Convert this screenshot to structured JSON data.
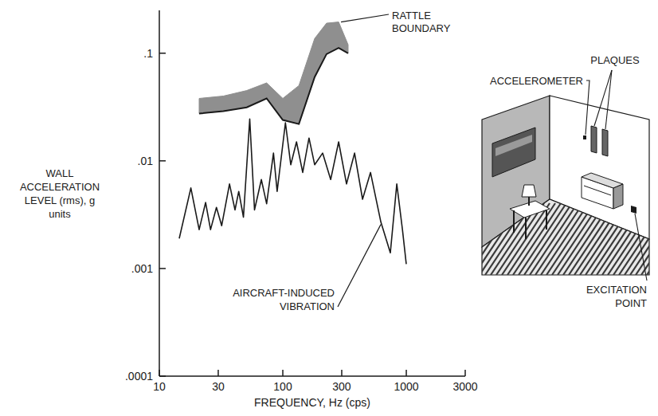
{
  "chart_data": {
    "type": "line",
    "xlabel": "FREQUENCY, Hz (cps)",
    "ylabel": "WALL ACCELERATION LEVEL (rms), g units",
    "log": true,
    "grid": false,
    "xlim": [
      10,
      3000
    ],
    "xticks": [
      10,
      30,
      100,
      300,
      1000,
      3000
    ],
    "ylim": [
      0.0001,
      0.25
    ],
    "yticks": [
      {
        "value": 0.0001,
        "label": ".0001"
      },
      {
        "value": 0.001,
        "label": ".001"
      },
      {
        "value": 0.01,
        "label": ".01"
      },
      {
        "value": 0.1,
        "label": ".1"
      }
    ],
    "series": [
      {
        "name": "RATTLE BOUNDARY",
        "type": "area",
        "color": "#8f8f8f",
        "x": [
          21,
          33,
          51,
          74,
          100,
          135,
          181,
          226,
          283,
          338
        ],
        "values": [
          0.0275,
          0.029,
          0.0314,
          0.038,
          0.024,
          0.022,
          0.06,
          0.098,
          0.112,
          0.1
        ],
        "upper": [
          0.038,
          0.04,
          0.045,
          0.053,
          0.038,
          0.05,
          0.137,
          0.19,
          0.195,
          0.12
        ]
      },
      {
        "name": "AIRCRAFT-INDUCED VIBRATION",
        "type": "line",
        "color": "#1a1a1a",
        "x": [
          14.5,
          18,
          21,
          23.7,
          26,
          29,
          32,
          37,
          41,
          44,
          48,
          54,
          59,
          67,
          74,
          84,
          90,
          105,
          116,
          129,
          145,
          163,
          181,
          210,
          244,
          283,
          328,
          381,
          442,
          513,
          622,
          743,
          837,
          930,
          1000
        ],
        "values": [
          0.0019,
          0.0056,
          0.0023,
          0.0041,
          0.0023,
          0.0037,
          0.0025,
          0.0061,
          0.0035,
          0.0052,
          0.003,
          0.0245,
          0.0035,
          0.0067,
          0.004,
          0.0118,
          0.0052,
          0.0226,
          0.0092,
          0.015,
          0.0078,
          0.0163,
          0.0092,
          0.0118,
          0.0067,
          0.015,
          0.0061,
          0.0118,
          0.0044,
          0.0078,
          0.0027,
          0.0014,
          0.0061,
          0.0023,
          0.0011
        ]
      }
    ]
  },
  "inset": {
    "labels": [
      "PLAQUES",
      "ACCELEROMETER",
      "EXCITATION POINT"
    ]
  }
}
